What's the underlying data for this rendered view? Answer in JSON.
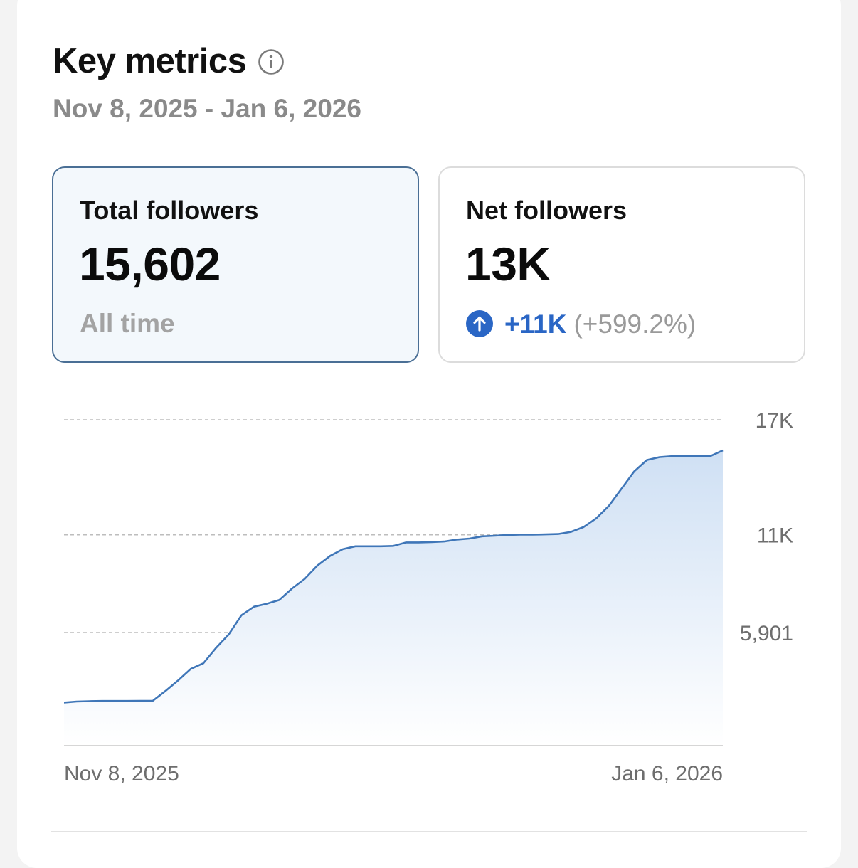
{
  "header": {
    "title": "Key metrics",
    "info_icon": "info-icon",
    "date_range": "Nov 8, 2025 - Jan 6, 2026"
  },
  "metrics": {
    "total": {
      "label": "Total followers",
      "value": "15,602",
      "sub": "All time"
    },
    "net": {
      "label": "Net followers",
      "value": "13K",
      "change_icon": "arrow-up-circle-icon",
      "change_abs": "+11K",
      "change_pct": "(+599.2%)"
    }
  },
  "colors": {
    "accent": "#2a66c5",
    "line": "#3f76b8",
    "selected_border": "#4a6f95",
    "selected_bg": "#f3f8fc"
  },
  "chart_data": {
    "type": "area",
    "title": "",
    "xlabel": "",
    "ylabel": "",
    "x_tick_labels": [
      "Nov 8, 2025",
      "Jan 6, 2026"
    ],
    "y_tick_labels": [
      "17K",
      "11K",
      "5,901"
    ],
    "y_ticks": [
      17000,
      11000,
      5901
    ],
    "ylim": [
      0,
      17000
    ],
    "grid": true,
    "series": [
      {
        "name": "Total followers",
        "values": [
          2250,
          2300,
          2320,
          2330,
          2330,
          2330,
          2340,
          2340,
          2850,
          3400,
          4000,
          4300,
          5100,
          5800,
          6800,
          7250,
          7400,
          7600,
          8200,
          8700,
          9400,
          9900,
          10250,
          10400,
          10400,
          10400,
          10420,
          10600,
          10600,
          10620,
          10650,
          10750,
          10800,
          10920,
          10950,
          10990,
          11010,
          11010,
          11020,
          11040,
          11150,
          11400,
          11850,
          12500,
          13400,
          14300,
          14900,
          15050,
          15100,
          15100,
          15100,
          15100,
          15400
        ]
      }
    ]
  }
}
